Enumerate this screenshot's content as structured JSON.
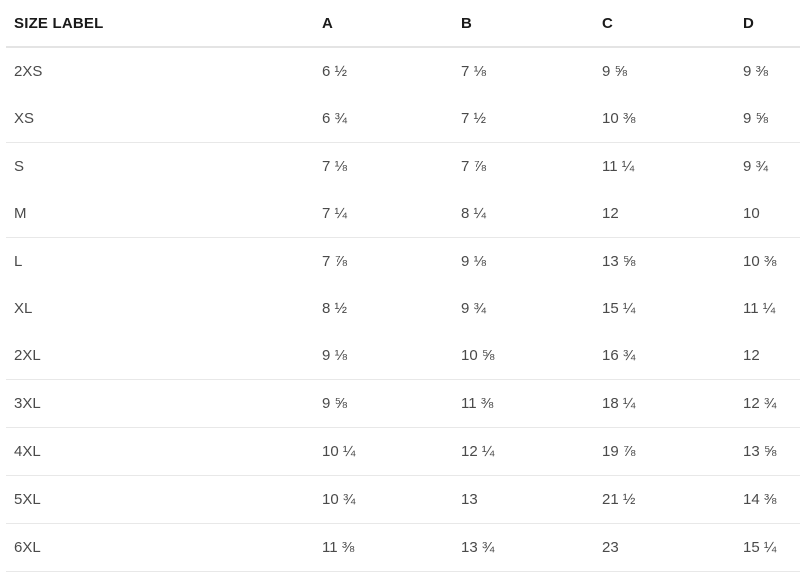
{
  "table": {
    "headers": [
      "SIZE LABEL",
      "A",
      "B",
      "C",
      "D"
    ],
    "rows": [
      [
        "2XS",
        "6 ½",
        "7 ⅛",
        "9 ⅝",
        "9 ⅜"
      ],
      [
        "XS",
        "6 ¾",
        "7 ½",
        "10 ⅜",
        "9 ⅝"
      ],
      [
        "S",
        "7 ⅛",
        "7 ⅞",
        "11 ¼",
        "9 ¾"
      ],
      [
        "M",
        "7 ¼",
        "8 ¼",
        "12",
        "10"
      ],
      [
        "L",
        "7 ⅞",
        "9 ⅛",
        "13 ⅝",
        "10 ⅜"
      ],
      [
        "XL",
        "8 ½",
        "9 ¾",
        "15 ¼",
        "11 ¼"
      ],
      [
        "2XL",
        "9 ⅛",
        "10 ⅝",
        "16 ¾",
        "12"
      ],
      [
        "3XL",
        "9 ⅝",
        "11 ⅜",
        "18 ¼",
        "12 ¾"
      ],
      [
        "4XL",
        "10 ¼",
        "12 ¼",
        "19 ⅞",
        "13 ⅝"
      ],
      [
        "5XL",
        "10 ¾",
        "13",
        "21 ½",
        "14 ⅜"
      ],
      [
        "6XL",
        "11 ⅜",
        "13 ¾",
        "23",
        "15 ¼"
      ]
    ]
  }
}
